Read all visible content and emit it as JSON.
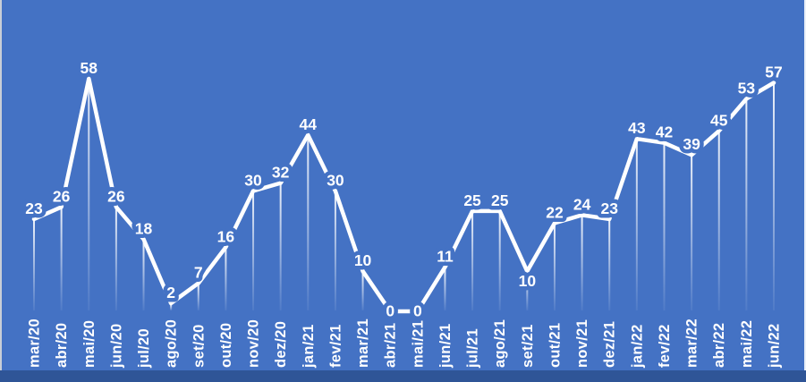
{
  "chart_data": {
    "type": "line",
    "title": "",
    "xlabel": "",
    "ylabel": "",
    "categories": [
      "mar/20",
      "abr/20",
      "mai/20",
      "jun/20",
      "jul/20",
      "ago/20",
      "set/20",
      "out/20",
      "nov/20",
      "dez/20",
      "jan/21",
      "fev/21",
      "mar/21",
      "abr/21",
      "mai/21",
      "jun/21",
      "jul/21",
      "ago/21",
      "set/21",
      "out/21",
      "nov/21",
      "dez/21",
      "jan/22",
      "fev/22",
      "mar/22",
      "abr/22",
      "mai/22",
      "jun/22"
    ],
    "values": [
      23,
      26,
      58,
      26,
      18,
      2,
      7,
      16,
      30,
      32,
      44,
      30,
      10,
      0,
      0,
      11,
      25,
      25,
      10,
      22,
      24,
      23,
      43,
      42,
      39,
      45,
      53,
      57
    ],
    "ylim": [
      0,
      58
    ],
    "grid": false,
    "legend": false,
    "data_labels": "shown above points",
    "x_tick_rotation": -90,
    "point_drop_lines": true
  },
  "colors": {
    "background": "#4472C4",
    "footer_band": "#2F5597",
    "line": "#FFFFFF",
    "data_label": "#FFFFFF",
    "axis_label": "#FFFFFF",
    "drop_line": "#FFFFFF",
    "left_edge": "#C9CED7",
    "right_edge": "#EAF0F8"
  }
}
